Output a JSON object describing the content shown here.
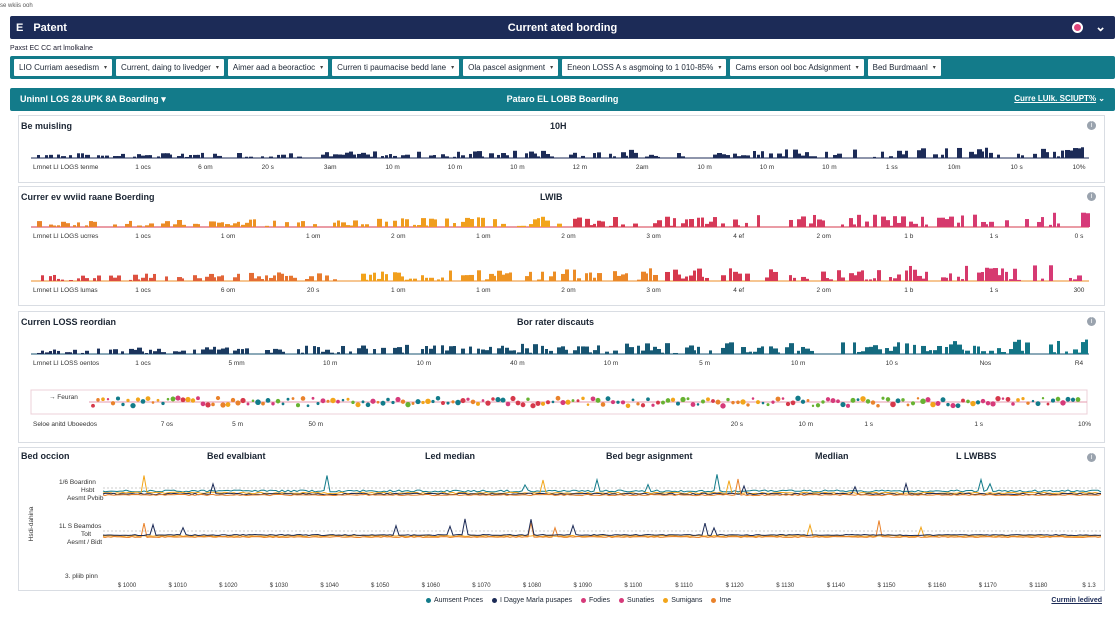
{
  "browser_caption": "se wkiis ooh",
  "topbar": {
    "logo": "E",
    "app_name": "Patent",
    "title": "Current ated bording"
  },
  "breadcrumb": "Paxst EC CC art lmolkalne",
  "filters": [
    "LIO Curriam aesedism",
    "Current, daing to livedger",
    "Aimer aad a beoractioc",
    "Curren ti paumacise bedd lane",
    "Ola pascel asignment",
    "Eneon LOSS A s asgmoing to  1 010-85%",
    "Cams erson ool boc Adsignment",
    "Bed Burdmaanl"
  ],
  "subbar": {
    "left": "Uninnl LOS 28.UPK 8A Boarding",
    "center": "Pataro EL LOBB Boarding",
    "right": "Curre LUlk. SCIUPT%"
  },
  "panels": {
    "p1": {
      "title": "Be muisling",
      "center_label": "10H"
    },
    "p2": {
      "title": "Currer ev wviid raane Boerding",
      "center_label": "LWIB"
    },
    "p3": {
      "title": "Curren LOSS reordian",
      "center_label": "Bor rater discauts"
    },
    "p4": {
      "titles": [
        "Bed occion",
        "Bed evalbiant",
        "Led median",
        "Bed begr asignment",
        "Medlian",
        "L LWBBS"
      ],
      "ylabel": "Hsdi-dahina"
    }
  },
  "tracks": {
    "t1": {
      "start_label": "Lrnnet LI LOGS tenme",
      "ticks": [
        "1 ocs",
        "6 om",
        "20 s",
        "3am",
        "10 m",
        "10 m",
        "10 m",
        "12 m",
        "2am",
        "10 m",
        "10 m",
        "10 m",
        "1 ss",
        "10m",
        "10 s",
        "10%"
      ]
    },
    "t2": {
      "start_label": "Lrnnet LI LOGS ucrres",
      "ticks": [
        "1 ocs",
        "1 om",
        "1 om",
        "2 om",
        "1 om",
        "2 om",
        "3 om",
        "4 ef",
        "2 om",
        "1 b",
        "1 s",
        "0 s"
      ]
    },
    "t3": {
      "start_label": "Lrnnet LI LOGS lumas",
      "ticks": [
        "1 ocs",
        "6 om",
        "20 s",
        "1 om",
        "1 om",
        "2 om",
        "3 om",
        "4 ef",
        "2 om",
        "1 b",
        "1 s",
        "300"
      ]
    },
    "t4": {
      "start_label": "Lrnnet LI LOSS oentos",
      "ticks": [
        "1 ocs",
        "5 mm",
        "10 m",
        "10 m",
        "40 m",
        "10 m",
        "5 m",
        "10 m",
        "10 s",
        "Nos",
        "R4"
      ]
    },
    "t5": {
      "start_label": "Seloe anitd Uboeedos",
      "legend": "Feuran",
      "ticks": [
        "7 os",
        "5 m",
        "50 m",
        "20 s",
        "10 m",
        "1 s",
        "1 s",
        "10%"
      ]
    }
  },
  "line_chart": {
    "row1": {
      "label_a": "1/6 Boardinn",
      "label_b": "Hsbt",
      "label_c": "Aesmt Pvbib"
    },
    "row2": {
      "label_a": "1L S Beamdos",
      "label_b": "Tolt",
      "label_c": "Aesmt / Bidt"
    },
    "row3": {
      "label_a": "3. pliib pinn"
    },
    "x_ticks": [
      "$ 1000",
      "$ 1010",
      "$ 1020",
      "$ 1030",
      "$ 1040",
      "$ 1050",
      "$ 1060",
      "$ 1070",
      "$ 1080",
      "$ 1090",
      "$ 1100",
      "$ 1110",
      "$ 1120",
      "$ 1130",
      "$ 1140",
      "$ 1150",
      "$ 1160",
      "$ 1170",
      "$ 1180",
      "$ 1.3"
    ]
  },
  "legend": [
    {
      "label": "Aumsent Pnces",
      "color": "#127b8a"
    },
    {
      "label": "I Dagye Marla pusapes",
      "color": "#1c2b57"
    },
    {
      "label": "Fodies",
      "color": "#d63a7a"
    },
    {
      "label": "Sunaties",
      "color": "#d63a7a"
    },
    {
      "label": "Sumigans",
      "color": "#f2a51a"
    },
    {
      "label": "Ime",
      "color": "#e9822b"
    }
  ],
  "footer_link": "Curmin ledived",
  "colors": {
    "navy": "#1c2b57",
    "teal": "#127b8a",
    "orange": "#e9822b",
    "yellow": "#f2a51a",
    "red": "#d6384b",
    "magenta": "#d63a7a",
    "green": "#67b231"
  }
}
